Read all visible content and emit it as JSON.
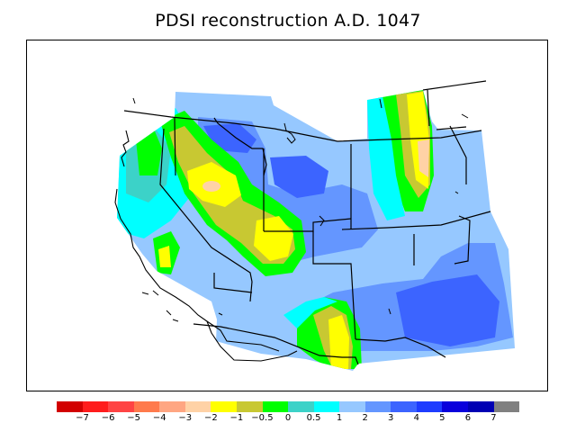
{
  "title": "PDSI reconstruction A.D. 1047",
  "legend": {
    "colors": [
      "#d20000",
      "#ff1c1c",
      "#ff4444",
      "#ff7a4c",
      "#ffa682",
      "#ffd2a6",
      "#ffff00",
      "#c8c832",
      "#00ff00",
      "#3cd2c8",
      "#00ffff",
      "#96c8ff",
      "#6496ff",
      "#3c64ff",
      "#1e3cff",
      "#0a00dc",
      "#0000b4",
      "#808080"
    ],
    "labels": [
      "−7",
      "−6",
      "−5",
      "−4",
      "−3",
      "−2",
      "−1",
      "−0.5",
      "0",
      "0.5",
      "1",
      "2",
      "3",
      "4",
      "5",
      "6",
      "7"
    ]
  },
  "map": {
    "region": "western United States",
    "palette": {
      "ocean": "#ffffff",
      "c1": "#00ffff",
      "c2": "#96c8ff",
      "c3": "#6496ff",
      "c4": "#3c64ff",
      "dry_pos": "#00ff00",
      "dry_mid": "#c8c832",
      "dry_neg": "#ffff00",
      "dry_strong": "#ffd2a6",
      "teal": "#3cd2c8",
      "outline": "#000000"
    }
  }
}
